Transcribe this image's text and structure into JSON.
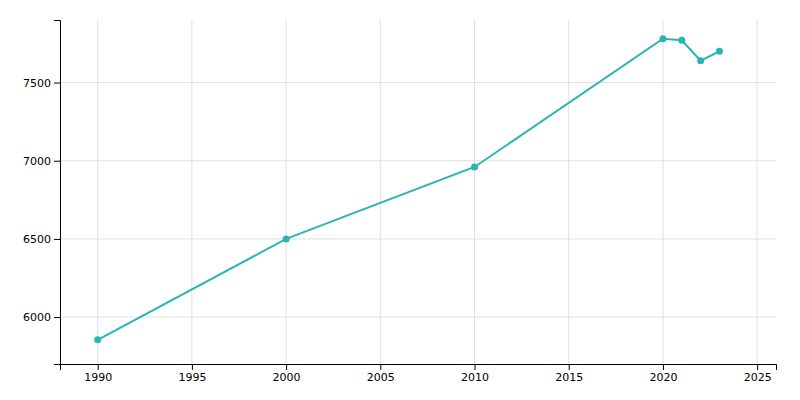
{
  "chart_data": {
    "type": "line",
    "x": [
      1990,
      2000,
      2010,
      2020,
      2021,
      2022,
      2023
    ],
    "values": [
      5855,
      6500,
      6960,
      7780,
      7770,
      7640,
      7700
    ],
    "color": "#2ab5b5",
    "marker": "circle",
    "xlim": [
      1988,
      2026
    ],
    "xticks": [
      1990,
      1995,
      2000,
      2005,
      2010,
      2015,
      2020,
      2025
    ],
    "ylim": [
      5700,
      7900
    ],
    "yticks": [
      6000,
      6500,
      7000,
      7500
    ],
    "grid": true
  }
}
